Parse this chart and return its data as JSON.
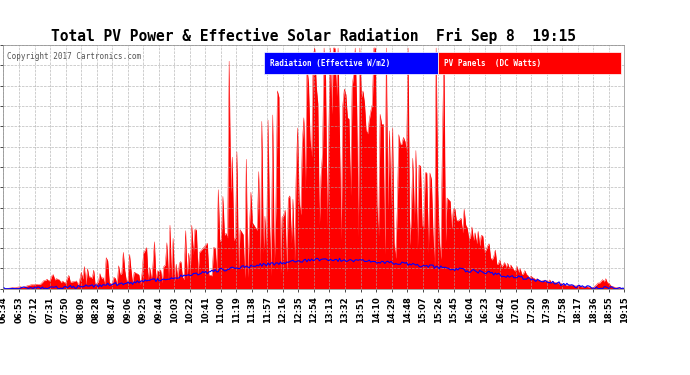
{
  "title": "Total PV Power & Effective Solar Radiation  Fri Sep 8  19:15",
  "copyright": "Copyright 2017 Cartronics.com",
  "legend_blue": "Radiation (Effective W/m2)",
  "legend_red": "PV Panels  (DC Watts)",
  "ylim": [
    -0.8,
    3645.2
  ],
  "yticks": [
    -0.8,
    303.0,
    606.8,
    910.7,
    1214.5,
    1518.3,
    1822.2,
    2126.0,
    2429.8,
    2733.7,
    3037.5,
    3341.3,
    3645.2
  ],
  "bg_color": "#ffffff",
  "plot_bg": "#ffffff",
  "grid_color": "#aaaaaa",
  "red_color": "#ff0000",
  "blue_color": "#0000ff",
  "title_color": "#000000",
  "ytick_color": "#000000",
  "xtick_color": "#000000",
  "time_labels": [
    "06:34",
    "06:53",
    "07:12",
    "07:31",
    "07:50",
    "08:09",
    "08:28",
    "08:47",
    "09:06",
    "09:25",
    "09:44",
    "10:03",
    "10:22",
    "10:41",
    "11:00",
    "11:19",
    "11:38",
    "11:57",
    "12:16",
    "12:35",
    "12:54",
    "13:13",
    "13:32",
    "13:51",
    "14:10",
    "14:29",
    "14:48",
    "15:07",
    "15:26",
    "15:45",
    "16:04",
    "16:23",
    "16:42",
    "17:01",
    "17:20",
    "17:39",
    "17:58",
    "18:17",
    "18:36",
    "18:55",
    "19:15"
  ]
}
